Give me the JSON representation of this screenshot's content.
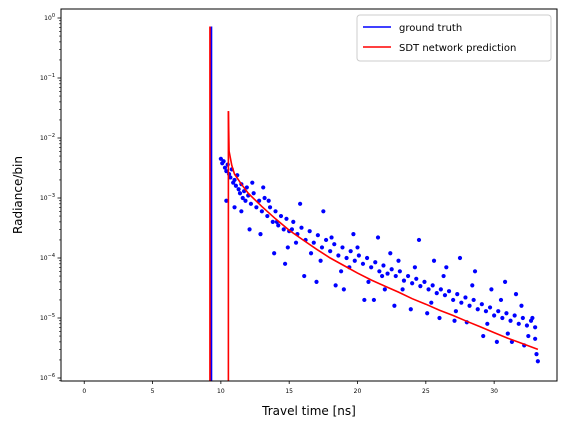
{
  "chart_data": {
    "type": "scatter",
    "xlabel": "Travel time [ns]",
    "ylabel": "Radiance/bin",
    "xlim": [
      -1.7,
      34.6
    ],
    "ylim_log10": [
      -6.05,
      0.15
    ],
    "log_y": true,
    "grid": false,
    "legend_position": "top-right",
    "x_ticks": [
      0,
      5,
      10,
      15,
      20,
      25,
      30
    ],
    "x_tick_labels": [
      "0",
      "5",
      "10",
      "15",
      "20",
      "25",
      "30"
    ],
    "y_ticks_exp": [
      0,
      -1,
      -2,
      -3,
      -4,
      -5,
      -6
    ],
    "y_tick_labels": [
      "10^0",
      "10^-1",
      "10^-2",
      "10^-3",
      "10^-4",
      "10^-5",
      "10^-6"
    ],
    "legend": [
      {
        "label": "ground truth",
        "color": "#0000ff"
      },
      {
        "label": "SDT network prediction",
        "color": "#ff0000"
      }
    ],
    "series": [
      {
        "name": "ground truth",
        "color": "#0000ff",
        "peak": {
          "x": 9.3,
          "y": 0.72
        },
        "points": [
          [
            10.0,
            0.0045
          ],
          [
            10.1,
            0.0038
          ],
          [
            10.2,
            0.0041
          ],
          [
            10.3,
            0.0032
          ],
          [
            10.4,
            0.0028
          ],
          [
            10.5,
            0.0036
          ],
          [
            10.6,
            0.0025
          ],
          [
            10.7,
            0.0022
          ],
          [
            10.8,
            0.003
          ],
          [
            10.9,
            0.0018
          ],
          [
            11.0,
            0.002
          ],
          [
            11.1,
            0.0016
          ],
          [
            11.2,
            0.0024
          ],
          [
            11.3,
            0.0014
          ],
          [
            11.4,
            0.0012
          ],
          [
            11.5,
            0.0017
          ],
          [
            11.6,
            0.001
          ],
          [
            11.7,
            0.0013
          ],
          [
            11.8,
            0.0009
          ],
          [
            11.9,
            0.0015
          ],
          [
            12.0,
            0.0011
          ],
          [
            12.2,
            0.0008
          ],
          [
            12.4,
            0.0012
          ],
          [
            12.6,
            0.0007
          ],
          [
            12.8,
            0.0009
          ],
          [
            13.0,
            0.0006
          ],
          [
            13.2,
            0.001
          ],
          [
            13.4,
            0.0005
          ],
          [
            13.6,
            0.0007
          ],
          [
            13.8,
            0.0004
          ],
          [
            14.0,
            0.0006
          ],
          [
            14.2,
            0.00035
          ],
          [
            14.4,
            0.0005
          ],
          [
            14.6,
            0.0003
          ],
          [
            14.8,
            0.00045
          ],
          [
            15.0,
            0.00028
          ],
          [
            15.3,
            0.0004
          ],
          [
            15.6,
            0.00025
          ],
          [
            15.9,
            0.00032
          ],
          [
            16.2,
            0.0002
          ],
          [
            16.5,
            0.00028
          ],
          [
            16.8,
            0.00018
          ],
          [
            17.1,
            0.00024
          ],
          [
            17.4,
            0.00015
          ],
          [
            17.7,
            0.0002
          ],
          [
            18.0,
            0.00013
          ],
          [
            18.3,
            0.00017
          ],
          [
            18.6,
            0.00011
          ],
          [
            18.9,
            0.00015
          ],
          [
            19.2,
            0.0001
          ],
          [
            19.5,
            0.00013
          ],
          [
            19.8,
            9e-05
          ],
          [
            20.1,
            0.00011
          ],
          [
            20.4,
            8e-05
          ],
          [
            20.7,
            0.0001
          ],
          [
            21.0,
            7e-05
          ],
          [
            21.3,
            8.5e-05
          ],
          [
            21.6,
            6e-05
          ],
          [
            21.9,
            7.5e-05
          ],
          [
            22.2,
            5.5e-05
          ],
          [
            22.5,
            6.5e-05
          ],
          [
            22.8,
            5e-05
          ],
          [
            23.1,
            6e-05
          ],
          [
            23.4,
            4.2e-05
          ],
          [
            23.7,
            5e-05
          ],
          [
            24.0,
            3.8e-05
          ],
          [
            24.3,
            4.5e-05
          ],
          [
            24.6,
            3.4e-05
          ],
          [
            24.9,
            4e-05
          ],
          [
            25.2,
            3e-05
          ],
          [
            25.5,
            3.5e-05
          ],
          [
            25.8,
            2.6e-05
          ],
          [
            26.1,
            3e-05
          ],
          [
            26.4,
            2.4e-05
          ],
          [
            26.7,
            2.8e-05
          ],
          [
            27.0,
            2e-05
          ],
          [
            27.3,
            2.5e-05
          ],
          [
            27.6,
            1.8e-05
          ],
          [
            27.9,
            2.2e-05
          ],
          [
            28.2,
            1.6e-05
          ],
          [
            28.5,
            2e-05
          ],
          [
            28.8,
            1.4e-05
          ],
          [
            29.1,
            1.7e-05
          ],
          [
            29.4,
            1.3e-05
          ],
          [
            29.7,
            1.5e-05
          ],
          [
            30.0,
            1.1e-05
          ],
          [
            30.3,
            1.3e-05
          ],
          [
            30.6,
            1e-05
          ],
          [
            30.9,
            1.2e-05
          ],
          [
            31.2,
            9e-06
          ],
          [
            31.5,
            1.1e-05
          ],
          [
            31.8,
            8e-06
          ],
          [
            32.1,
            1e-05
          ],
          [
            32.4,
            7.5e-06
          ],
          [
            32.7,
            9e-06
          ],
          [
            33.0,
            7e-06
          ],
          [
            10.4,
            0.0009
          ],
          [
            11.5,
            0.0006
          ],
          [
            12.1,
            0.0003
          ],
          [
            12.9,
            0.00025
          ],
          [
            13.1,
            0.0015
          ],
          [
            13.9,
            0.00012
          ],
          [
            14.7,
            8e-05
          ],
          [
            15.5,
            0.00018
          ],
          [
            15.8,
            0.0008
          ],
          [
            16.1,
            5e-05
          ],
          [
            17.0,
            4e-05
          ],
          [
            17.5,
            0.0006
          ],
          [
            18.4,
            3.5e-05
          ],
          [
            19.0,
            3e-05
          ],
          [
            19.7,
            0.00025
          ],
          [
            20.5,
            2e-05
          ],
          [
            21.2,
            2e-05
          ],
          [
            21.5,
            0.00022
          ],
          [
            22.0,
            3e-05
          ],
          [
            22.7,
            1.6e-05
          ],
          [
            23.0,
            9e-05
          ],
          [
            23.9,
            1.4e-05
          ],
          [
            24.5,
            0.0002
          ],
          [
            25.1,
            1.2e-05
          ],
          [
            25.6,
            9e-05
          ],
          [
            26.0,
            1e-05
          ],
          [
            26.5,
            7e-05
          ],
          [
            27.1,
            9e-06
          ],
          [
            27.5,
            0.0001
          ],
          [
            28.0,
            8.5e-06
          ],
          [
            28.6,
            6e-05
          ],
          [
            29.2,
            5e-06
          ],
          [
            29.8,
            3e-05
          ],
          [
            30.2,
            4e-06
          ],
          [
            30.8,
            4e-05
          ],
          [
            31.3,
            4e-06
          ],
          [
            31.6,
            2.5e-05
          ],
          [
            32.2,
            3.5e-06
          ],
          [
            32.8,
            1e-05
          ],
          [
            33.1,
            2.5e-06
          ],
          [
            33.2,
            1.9e-06
          ],
          [
            11.0,
            0.0007
          ],
          [
            12.3,
            0.0018
          ],
          [
            13.5,
            0.0009
          ],
          [
            14.1,
            0.0004
          ],
          [
            14.9,
            0.00015
          ],
          [
            15.2,
            0.0003
          ],
          [
            16.6,
            0.00012
          ],
          [
            17.3,
            9e-05
          ],
          [
            18.1,
            0.00022
          ],
          [
            18.8,
            6e-05
          ],
          [
            19.4,
            7e-05
          ],
          [
            20.0,
            0.00015
          ],
          [
            20.8,
            4e-05
          ],
          [
            21.8,
            5e-05
          ],
          [
            22.4,
            0.00012
          ],
          [
            23.3,
            3e-05
          ],
          [
            24.2,
            7e-05
          ],
          [
            25.4,
            1.8e-05
          ],
          [
            26.3,
            5e-05
          ],
          [
            27.2,
            1.3e-05
          ],
          [
            28.4,
            3.5e-05
          ],
          [
            29.5,
            8e-06
          ],
          [
            30.5,
            2e-05
          ],
          [
            31.0,
            5.5e-06
          ],
          [
            32.0,
            1.6e-05
          ],
          [
            32.5,
            5e-06
          ],
          [
            33.0,
            4.5e-06
          ]
        ]
      },
      {
        "name": "SDT network prediction",
        "color": "#ff0000",
        "peak": {
          "x": 9.2,
          "y": 0.72
        },
        "second_peak": {
          "x": 10.55,
          "y": 0.028
        },
        "curve": [
          [
            10.55,
            0.028
          ],
          [
            10.6,
            0.006
          ],
          [
            10.8,
            0.0035
          ],
          [
            11.0,
            0.0025
          ],
          [
            11.5,
            0.0017
          ],
          [
            12.0,
            0.0012
          ],
          [
            13.0,
            0.00072
          ],
          [
            14.0,
            0.00045
          ],
          [
            15.0,
            0.00029
          ],
          [
            16.0,
            0.0002
          ],
          [
            17.0,
            0.00014
          ],
          [
            18.0,
            0.0001
          ],
          [
            19.0,
            7.5e-05
          ],
          [
            20.0,
            5.6e-05
          ],
          [
            21.0,
            4.3e-05
          ],
          [
            22.0,
            3.4e-05
          ],
          [
            23.0,
            2.7e-05
          ],
          [
            24.0,
            2.1e-05
          ],
          [
            25.0,
            1.7e-05
          ],
          [
            26.0,
            1.35e-05
          ],
          [
            27.0,
            1.1e-05
          ],
          [
            28.0,
            8.8e-06
          ],
          [
            29.0,
            7.1e-06
          ],
          [
            30.0,
            5.7e-06
          ],
          [
            31.0,
            4.6e-06
          ],
          [
            32.0,
            3.8e-06
          ],
          [
            33.2,
            3e-06
          ]
        ]
      }
    ]
  }
}
